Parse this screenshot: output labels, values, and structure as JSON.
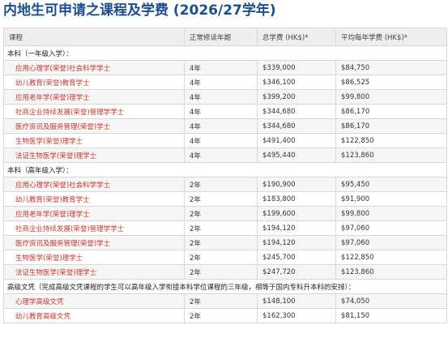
{
  "title": "内地生可申请之课程及学费 (2026/27学年)",
  "headers": {
    "course": "课程",
    "duration": "正常修读年期",
    "total": "总学费 (HK$)*",
    "annual": "平均每年学费 (HK$)*"
  },
  "sections": [
    {
      "label": "本科（一年级入学）：",
      "rows": [
        {
          "course": "应用心理学(荣誉)社会科学学士",
          "duration": "4年",
          "total": "$339,000",
          "annual": "$84,750"
        },
        {
          "course": "幼儿教育(荣誉)教育学士",
          "duration": "4年",
          "total": "$346,100",
          "annual": "$86,525"
        },
        {
          "course": "应用老年学(荣誉)理学士",
          "duration": "4年",
          "total": "$399,200",
          "annual": "$99,800"
        },
        {
          "course": "社商企业持续发展(荣誉)管理学学士",
          "duration": "4年",
          "total": "$344,680",
          "annual": "$86,170"
        },
        {
          "course": "医疗资讯及服务管理(荣誉)学士",
          "duration": "4年",
          "total": "$344,680",
          "annual": "$86,170"
        },
        {
          "course": "生物医学(荣誉)理学士",
          "duration": "4年",
          "total": "$491,400",
          "annual": "$122,850"
        },
        {
          "course": "法证生物医学(荣誉)理学士",
          "duration": "4年",
          "total": "$495,440",
          "annual": "$123,860"
        }
      ]
    },
    {
      "label": "本科（高年级入学）：",
      "rows": [
        {
          "course": "应用心理学(荣誉)社会科学学士",
          "duration": "2年",
          "total": "$190,900",
          "annual": "$95,450"
        },
        {
          "course": "幼儿教育(荣誉)教育学士",
          "duration": "2年",
          "total": "$183,800",
          "annual": "$91,900"
        },
        {
          "course": "应用老年学(荣誉)理学士",
          "duration": "2年",
          "total": "$199,600",
          "annual": "$99,800"
        },
        {
          "course": "社商企业持续发展(荣誉)管理学学士",
          "duration": "2年",
          "total": "$194,120",
          "annual": "$97,060"
        },
        {
          "course": "医疗资讯及服务管理(荣誉)学士",
          "duration": "2年",
          "total": "$194,120",
          "annual": "$97,060"
        },
        {
          "course": "生物医学(荣誉)理学士",
          "duration": "2年",
          "total": "$245,700",
          "annual": "$122,850"
        },
        {
          "course": "法证生物医学(荣誉)理学士",
          "duration": "2年",
          "total": "$247,720",
          "annual": "$123,860"
        }
      ]
    },
    {
      "label": "高级文凭（完成高级文凭课程的学生可以高年级入学衔接本科学位课程的三年级，相等于国内专科升本科的安排）：",
      "rows": [
        {
          "course": "心理学高级文凭",
          "duration": "2年",
          "total": "$148,100",
          "annual": "$74,050"
        },
        {
          "course": "幼儿教育高级文凭",
          "duration": "2年",
          "total": "$162,300",
          "annual": "$81,150"
        }
      ]
    }
  ]
}
